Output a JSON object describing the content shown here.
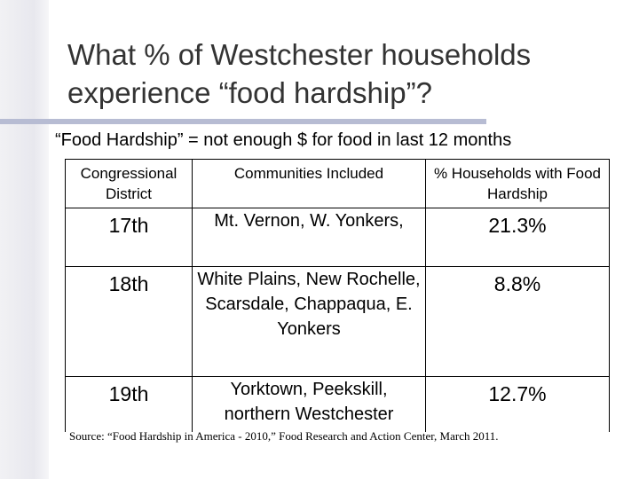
{
  "title": "What % of Westchester households experience “food hardship”?",
  "subtitle": "“Food Hardship” = not enough $ for food in last 12 months",
  "table": {
    "headers": [
      "Congressional District",
      "Communities Included",
      "% Households with Food Hardship"
    ],
    "rows": [
      {
        "district": "17th",
        "communities": "Mt. Vernon, W. Yonkers,",
        "percent": "21.3%"
      },
      {
        "district": "18th",
        "communities": "White Plains, New Rochelle, Scarsdale, Chappaqua, E. Yonkers",
        "percent": "8.8%"
      },
      {
        "district": "19th",
        "communities": "Yorktown, Peekskill, northern Westchester",
        "percent": "12.7%"
      }
    ]
  },
  "source": "Source: “Food Hardship in America - 2010,” Food Research and Action Center, March 2011.",
  "colors": {
    "title_text": "#333333",
    "title_rule": "#b7bcd3",
    "left_bar": "#ececf1"
  }
}
